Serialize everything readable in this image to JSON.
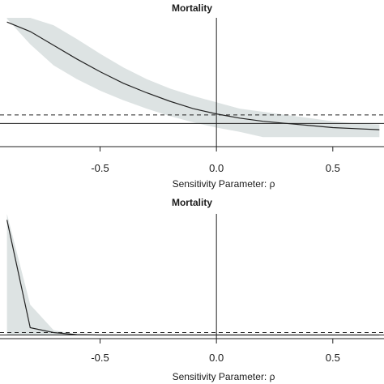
{
  "chart_data": [
    {
      "type": "line",
      "title": "Mortality",
      "xlabel": "Sensitivity Parameter: ρ",
      "ylabel": "",
      "xlim": [
        -0.93,
        0.72
      ],
      "ylim": [
        -0.22,
        1.0
      ],
      "xticks": [
        -0.5,
        0.0,
        0.5
      ],
      "xtick_labels": [
        "-0.5",
        "0.0",
        "0.5"
      ],
      "vline_x": 0.0,
      "hline_solid_y": 0.0,
      "hline_dashed_y": 0.08,
      "grid": false,
      "colors": {
        "line": "#222222",
        "band": "#dde3e3",
        "axis": "#222222"
      },
      "series": [
        {
          "x": [
            -0.9,
            -0.8,
            -0.7,
            -0.6,
            -0.5,
            -0.4,
            -0.3,
            -0.2,
            -0.1,
            0.0,
            0.1,
            0.2,
            0.3,
            0.4,
            0.5,
            0.6,
            0.7
          ],
          "values": [
            0.96,
            0.87,
            0.74,
            0.61,
            0.49,
            0.38,
            0.29,
            0.21,
            0.14,
            0.09,
            0.05,
            0.02,
            0.0,
            -0.02,
            -0.04,
            -0.05,
            -0.06
          ],
          "lower": [
            0.99,
            0.75,
            0.55,
            0.42,
            0.31,
            0.22,
            0.14,
            0.07,
            0.01,
            -0.04,
            -0.08,
            -0.13,
            -0.13,
            -0.13,
            -0.13,
            -0.13,
            -0.13
          ],
          "upper": [
            1.0,
            1.0,
            0.93,
            0.8,
            0.66,
            0.53,
            0.42,
            0.33,
            0.26,
            0.2,
            0.14,
            0.11,
            0.08,
            0.05,
            0.02,
            0.0,
            -0.01
          ]
        }
      ]
    },
    {
      "type": "line",
      "title": "Mortality",
      "xlabel": "Sensitivity Parameter: ρ",
      "ylabel": "",
      "xlim": [
        -0.93,
        0.72
      ],
      "ylim": [
        -0.03,
        1.0
      ],
      "xticks": [
        -0.5,
        0.0,
        0.5
      ],
      "xtick_labels": [
        "-0.5",
        "0.0",
        "0.5"
      ],
      "vline_x": 0.0,
      "hline_solid_y": 0.0,
      "hline_dashed_y": 0.0,
      "grid": false,
      "colors": {
        "line": "#222222",
        "band": "#dde3e3",
        "axis": "#222222"
      },
      "series": [
        {
          "x": [
            -0.9,
            -0.8,
            -0.7,
            -0.6,
            -0.5,
            -0.4,
            -0.3,
            -0.2,
            -0.1,
            0.0,
            0.1,
            0.2,
            0.3,
            0.4,
            0.5,
            0.6,
            0.7
          ],
          "values": [
            0.95,
            0.06,
            0.02,
            0.003,
            0.0,
            0.0,
            0.0,
            0.0,
            0.0,
            0.0,
            0.0,
            0.0,
            0.0,
            0.0,
            0.0,
            0.0,
            0.0
          ],
          "lower": [
            0.0,
            0.0,
            0.0,
            0.0,
            0.0,
            0.0,
            0.0,
            0.0,
            0.0,
            0.0,
            0.0,
            0.0,
            0.0,
            0.0,
            0.0,
            0.0,
            0.0
          ],
          "upper": [
            1.0,
            0.25,
            0.04,
            0.005,
            0.0,
            0.0,
            0.0,
            0.0,
            0.0,
            0.0,
            0.0,
            0.0,
            0.0,
            0.0,
            0.0,
            0.0,
            0.0
          ]
        }
      ]
    }
  ]
}
